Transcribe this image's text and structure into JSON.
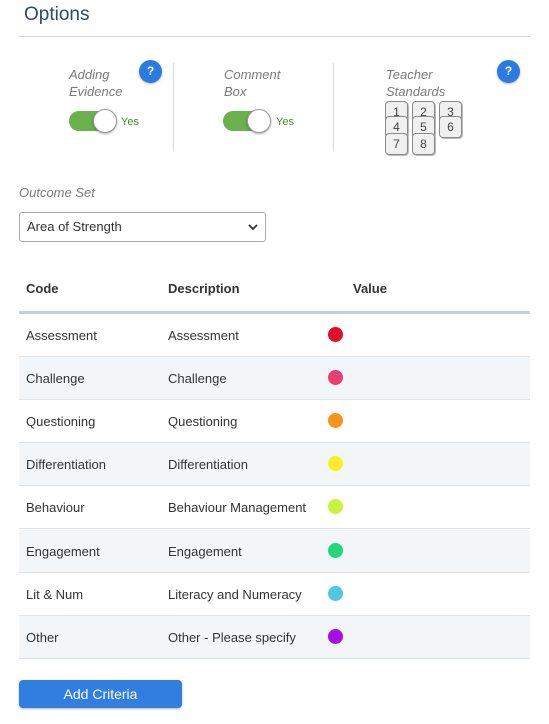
{
  "header": {
    "title": "Options"
  },
  "options": {
    "adding_evidence": {
      "label_line1": "Adding",
      "label_line2": "Evidence",
      "state_text": "Yes"
    },
    "comment_box": {
      "label_line1": "Comment",
      "label_line2": "Box",
      "state_text": "Yes"
    },
    "teacher_standards": {
      "label_line1": "Teacher",
      "label_line2": "Standards",
      "boxes": [
        "1",
        "2",
        "3",
        "4",
        "5",
        "6",
        "7",
        "8"
      ]
    },
    "help_icon_text": "?"
  },
  "outcome_set": {
    "label": "Outcome Set",
    "selected": "Area of Strength"
  },
  "table": {
    "headers": {
      "code": "Code",
      "description": "Description",
      "value": "Value"
    },
    "rows": [
      {
        "code": "Assessment",
        "description": "Assessment",
        "color": "#e0102a"
      },
      {
        "code": "Challenge",
        "description": "Challenge",
        "color": "#e83e72"
      },
      {
        "code": "Questioning",
        "description": "Questioning",
        "color": "#f7941d"
      },
      {
        "code": "Differentiation",
        "description": "Differentiation",
        "color": "#f7ef26"
      },
      {
        "code": "Behaviour",
        "description": "Behaviour Management",
        "color": "#c9f23c"
      },
      {
        "code": "Engagement",
        "description": "Engagement",
        "color": "#23d67a"
      },
      {
        "code": "Lit & Num",
        "description": "Literacy and Numeracy",
        "color": "#4fc8e0"
      },
      {
        "code": "Other",
        "description": "Other - Please specify",
        "color": "#a40fe8"
      }
    ]
  },
  "actions": {
    "add_criteria": "Add Criteria"
  }
}
